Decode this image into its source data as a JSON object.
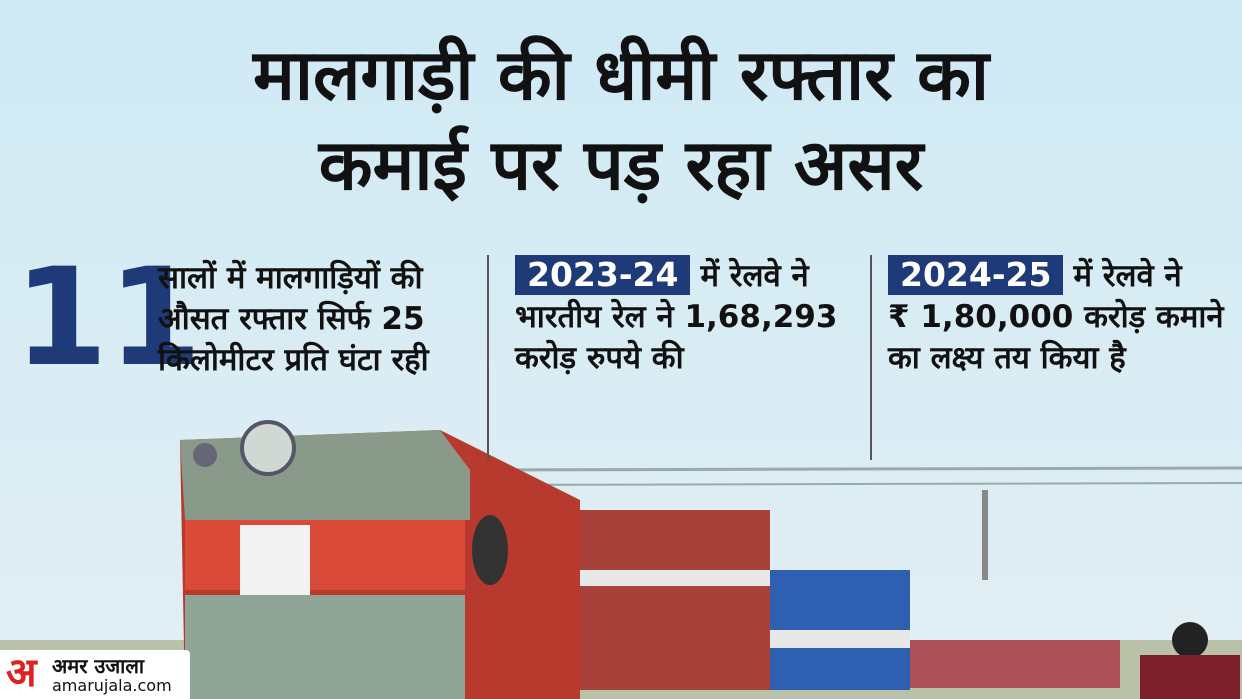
{
  "header": {
    "title_lines": [
      "मालगाड़ी की धीमी रफ्तार का",
      "कमाई पर पड़ रहा असर"
    ]
  },
  "stats": [
    {
      "highlight": "11",
      "lines": [
        "सालों में मालगाड़ियों की",
        "औसत रफ्तार सिर्फ 25",
        "किलोमीटर प्रति घंटा रही"
      ]
    },
    {
      "highlight": "2023-24",
      "lines": [
        "में रेलवे ने",
        "भारतीय रेल ने 1,68,293",
        "करोड़ रुपये की"
      ]
    },
    {
      "highlight": "2024-25",
      "lines": [
        "में रेलवे ने",
        "₹ 1,80,000 करोड़ कमाने",
        "का लक्ष्य तय किया है"
      ]
    }
  ],
  "logo": {
    "mark": "अ",
    "name": "अमर उजाला",
    "url": "amarujala.com"
  }
}
